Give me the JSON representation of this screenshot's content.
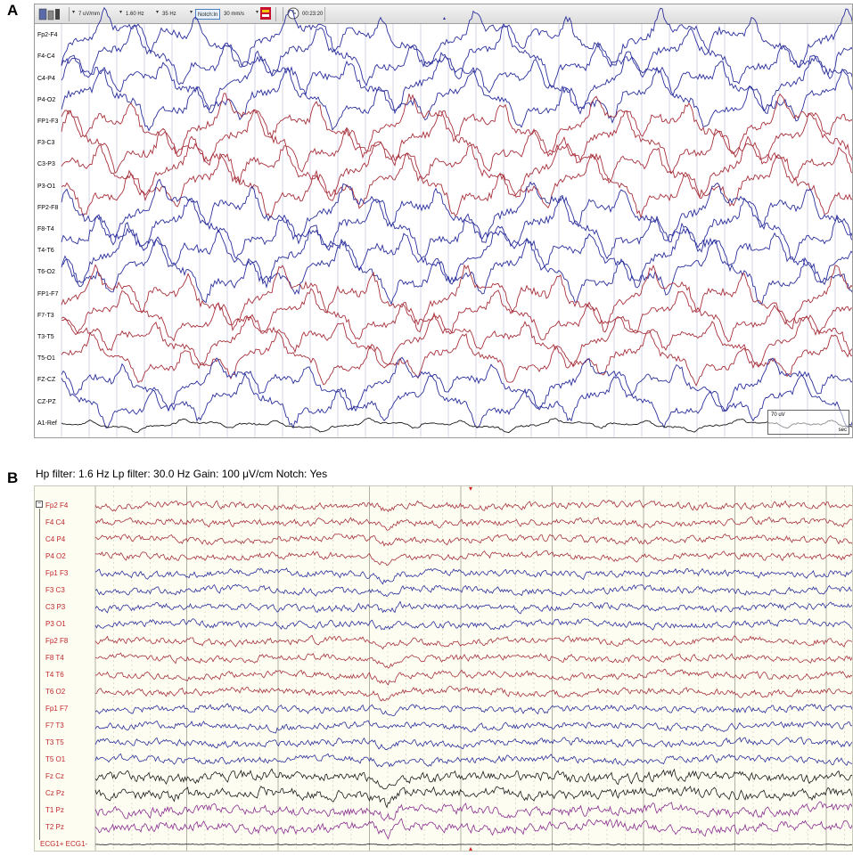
{
  "panel_a": {
    "letter": "A",
    "toolbar": {
      "sensitivity": "7 uV/mm",
      "high_pass": "1.60 Hz",
      "low_pass": "35 Hz",
      "notch": "Notch:In",
      "speed": "30 mm/s",
      "time": "00:23:20"
    },
    "channels": [
      "Fp2-F4",
      "F4-C4",
      "C4-P4",
      "P4-O2",
      "FP1-F3",
      "F3-C3",
      "C3-P3",
      "P3-O1",
      "FP2-F8",
      "F8-T4",
      "T4-T6",
      "T6-O2",
      "FP1-F7",
      "F7-T3",
      "T3-T5",
      "T5-O1",
      "FZ-CZ",
      "CZ-PZ",
      "A1-Ref"
    ],
    "channel_colors": [
      "blue",
      "blue",
      "blue",
      "blue",
      "red",
      "red",
      "red",
      "red",
      "blue",
      "blue",
      "blue",
      "blue",
      "red",
      "red",
      "red",
      "red",
      "blue",
      "blue",
      "black"
    ],
    "scale_label": "70 uV",
    "scale_unit": "sec"
  },
  "panel_b": {
    "letter": "B",
    "filter_text": "Hp filter: 1.6 Hz Lp filter: 30.0 Hz Gain: 100 μV/cm Notch: Yes",
    "channels": [
      "Fp2 F4",
      "F4 C4",
      "C4 P4",
      "P4 O2",
      "Fp1 F3",
      "F3 C3",
      "C3 P3",
      "P3 O1",
      "Fp2 F8",
      "F8 T4",
      "T4 T6",
      "T6 O2",
      "Fp1 F7",
      "F7 T3",
      "T3 T5",
      "T5 O1",
      "Fz Cz",
      "Cz Pz",
      "T1 Pz",
      "T2 Pz",
      "ECG1+ ECG1-"
    ],
    "channel_colors": [
      "red",
      "red",
      "red",
      "red",
      "blue",
      "blue",
      "blue",
      "blue",
      "red",
      "red",
      "red",
      "red",
      "blue",
      "blue",
      "blue",
      "blue",
      "black",
      "black",
      "purple",
      "purple",
      "black"
    ]
  },
  "colors": {
    "blue": "#2b2f9c",
    "red": "#a8313c",
    "black": "#1a1a1a",
    "purple": "#8a2d8f",
    "label_red": "#c0272d",
    "panel_b_bg": "#fdfdf2"
  }
}
